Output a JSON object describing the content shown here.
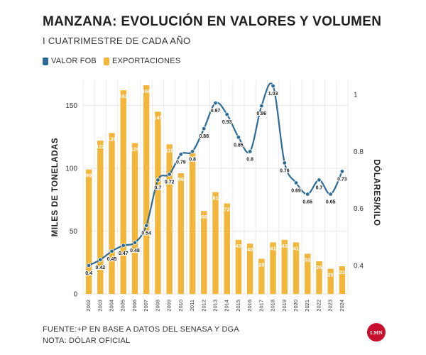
{
  "header": {
    "title": "MANZANA: EVOLUCIÓN EN VALORES Y VOLUMEN",
    "subtitle": "I CUATRIMESTRE DE CADA AÑO"
  },
  "legend": {
    "items": [
      {
        "label": "VALOR FOB",
        "color": "#2e6c97"
      },
      {
        "label": "EXPORTACIONES",
        "color": "#f2b63a"
      }
    ]
  },
  "chart_data": {
    "type": "bar",
    "categories": [
      "2002",
      "2003",
      "2004",
      "2005",
      "2006",
      "2007",
      "2008",
      "2009",
      "2010",
      "2011",
      "2012",
      "2013",
      "2014",
      "2015",
      "2016",
      "2017",
      "2018",
      "2019",
      "2020",
      "2021",
      "2022",
      "2023",
      "2024"
    ],
    "series": [
      {
        "name": "EXPORTACIONES",
        "type": "bar",
        "axis": "left",
        "color": "#f2b63a",
        "values": [
          99,
          122,
          128,
          162,
          120,
          166,
          145,
          119,
          96,
          112,
          66,
          81,
          72,
          43,
          40,
          28,
          41,
          43,
          41,
          32,
          26,
          20,
          22
        ]
      },
      {
        "name": "VALOR FOB",
        "type": "line",
        "axis": "right",
        "color": "#2e6c97",
        "values": [
          0.4,
          0.42,
          0.45,
          0.47,
          0.48,
          0.54,
          0.7,
          0.72,
          0.79,
          0.8,
          0.88,
          0.97,
          0.93,
          0.85,
          0.8,
          0.96,
          1.03,
          0.76,
          0.69,
          0.65,
          0.7,
          0.65,
          0.73
        ]
      }
    ],
    "ylabel": "MILES DE TONELADAS",
    "y2label": "DÓLARES/KILO",
    "ylim": [
      0,
      170
    ],
    "y2lim": [
      0.3,
      1.05
    ],
    "yticks": [
      "0",
      "50",
      "100",
      "150"
    ],
    "y2ticks": [
      "0.4",
      "0.6",
      "0.8",
      "1"
    ],
    "grid": true
  },
  "footer": {
    "source": "FUENTE:+P EN BASE A DATOS DEL SENASA Y DGA",
    "note": "NOTA: DÓLAR OFICIAL"
  },
  "logo": {
    "text": "LMN",
    "color": "#c8102e"
  }
}
